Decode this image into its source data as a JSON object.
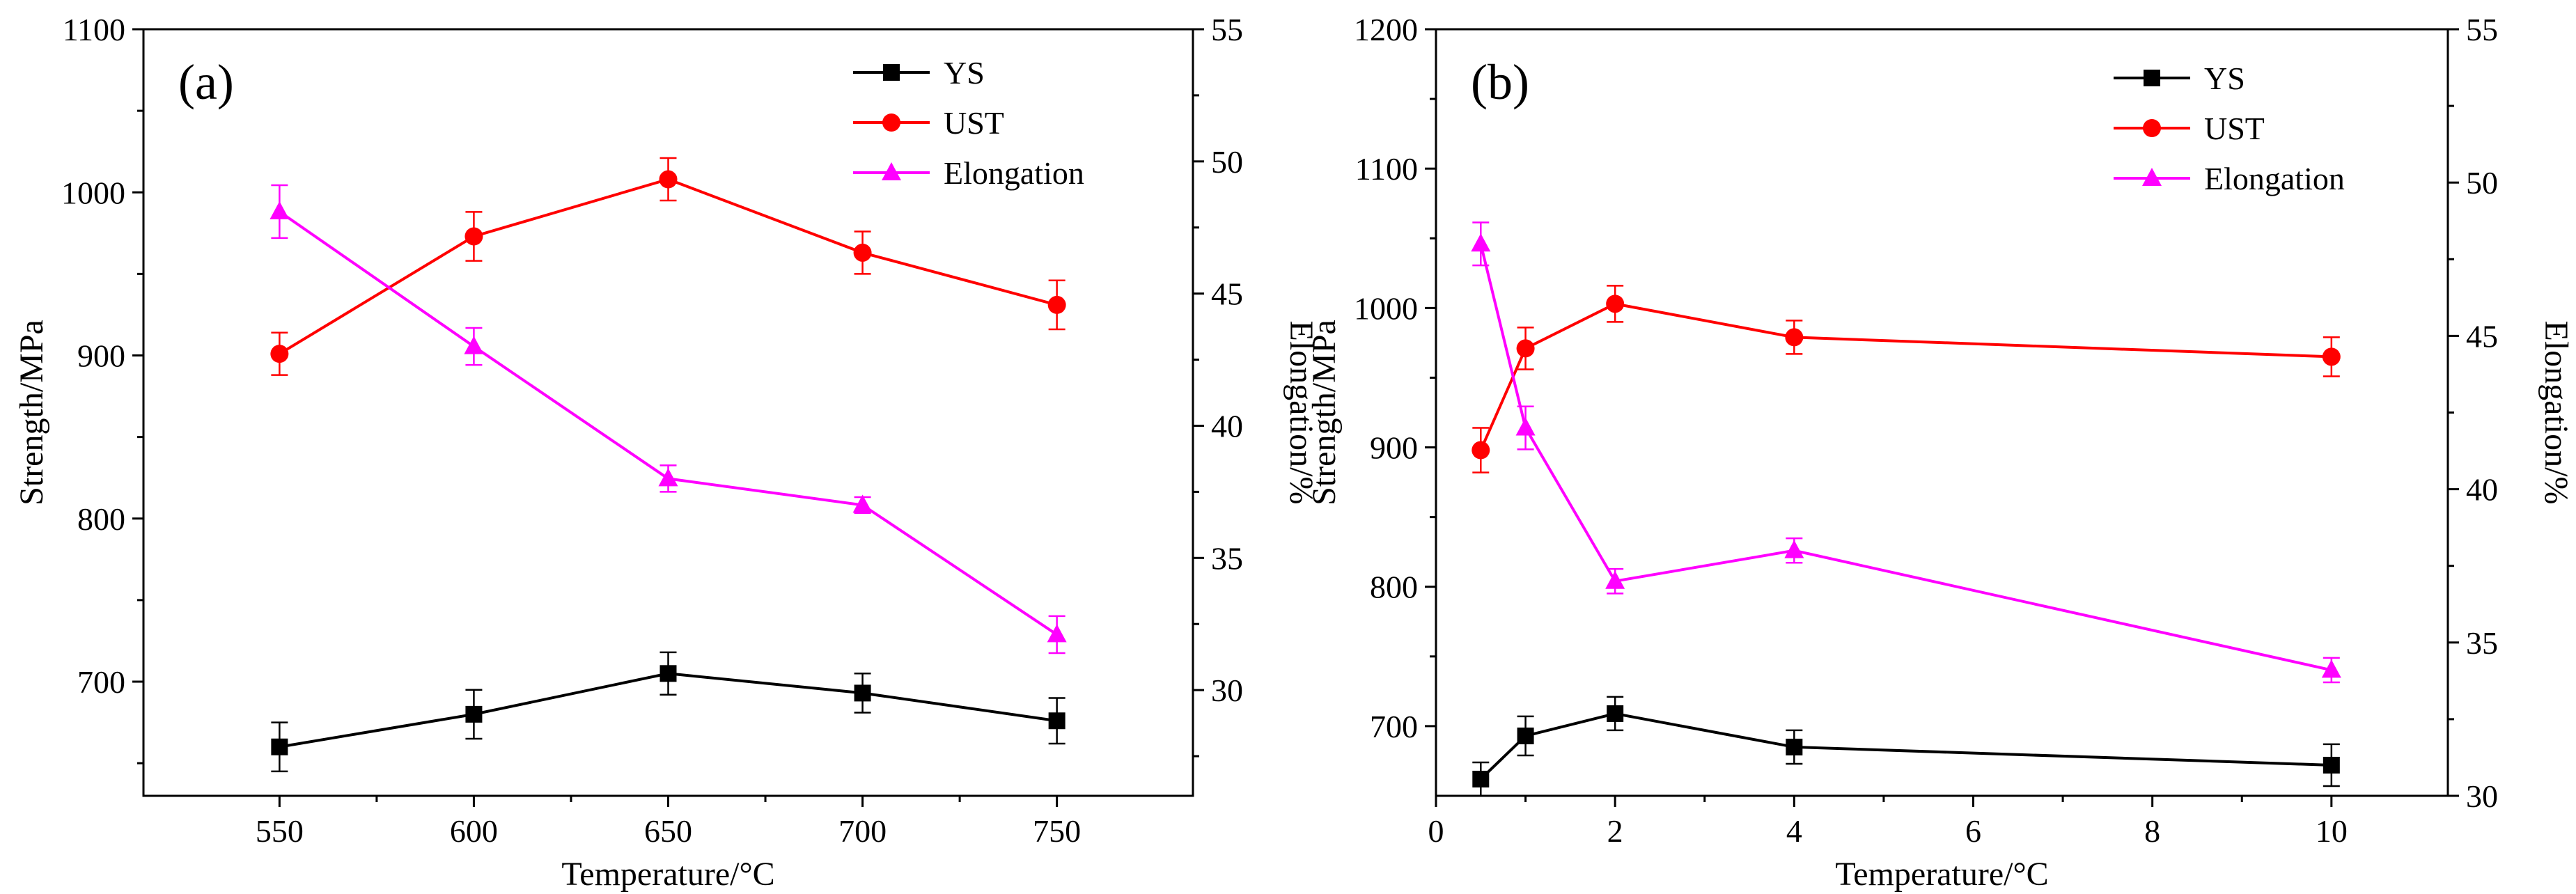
{
  "chart_data": [
    {
      "type": "line",
      "panel_label": "(a)",
      "xlabel": "Temperature/°C",
      "ylabel": "Strength/MPa",
      "y2label": "Elongation/%",
      "xlim": [
        515,
        785
      ],
      "ylim": [
        630,
        1100
      ],
      "y2lim": [
        26,
        55
      ],
      "xticks": [
        550,
        600,
        650,
        700,
        750
      ],
      "yticks": [
        700,
        800,
        900,
        1000,
        1100
      ],
      "y2ticks": [
        30,
        35,
        40,
        45,
        50,
        55
      ],
      "legend_position": "top-right",
      "series": [
        {
          "name": "YS",
          "axis": "left",
          "color": "#000000",
          "marker": "square",
          "x": [
            550,
            600,
            650,
            700,
            750
          ],
          "values": [
            660,
            680,
            705,
            693,
            676
          ],
          "errors": [
            15,
            15,
            13,
            12,
            14
          ]
        },
        {
          "name": "UST",
          "axis": "left",
          "color": "#ff0000",
          "marker": "circle",
          "x": [
            550,
            600,
            650,
            700,
            750
          ],
          "values": [
            901,
            973,
            1008,
            963,
            931
          ],
          "errors": [
            13,
            15,
            13,
            13,
            15
          ]
        },
        {
          "name": "Elongation",
          "axis": "right",
          "color": "#ff00ff",
          "marker": "triangle",
          "x": [
            550,
            600,
            650,
            700,
            750
          ],
          "values": [
            48.1,
            43.0,
            38.0,
            37.0,
            32.1
          ],
          "errors": [
            1.0,
            0.7,
            0.5,
            0.3,
            0.7
          ]
        }
      ]
    },
    {
      "type": "line",
      "panel_label": "(b)",
      "xlabel": "Temperature/°C",
      "ylabel": "Strength/MPa",
      "y2label": "Elongation/%",
      "xlim": [
        0,
        11.3
      ],
      "ylim": [
        650,
        1200
      ],
      "y2lim": [
        30,
        55
      ],
      "xticks": [
        0,
        2,
        4,
        6,
        8,
        10
      ],
      "yticks": [
        700,
        800,
        900,
        1000,
        1100,
        1200
      ],
      "y2ticks": [
        30,
        35,
        40,
        45,
        50,
        55
      ],
      "legend_position": "top-right",
      "series": [
        {
          "name": "YS",
          "axis": "left",
          "color": "#000000",
          "marker": "square",
          "x": [
            0.5,
            1,
            2,
            4,
            10
          ],
          "values": [
            662,
            693,
            709,
            685,
            672
          ],
          "errors": [
            12,
            14,
            12,
            12,
            15
          ]
        },
        {
          "name": "UST",
          "axis": "left",
          "color": "#ff0000",
          "marker": "circle",
          "x": [
            0.5,
            1,
            2,
            4,
            10
          ],
          "values": [
            898,
            971,
            1003,
            979,
            965
          ],
          "errors": [
            16,
            15,
            13,
            12,
            14
          ]
        },
        {
          "name": "Elongation",
          "axis": "right",
          "color": "#ff00ff",
          "marker": "triangle",
          "x": [
            0.5,
            1,
            2,
            4,
            10
          ],
          "values": [
            48.0,
            42.0,
            37.0,
            38.0,
            34.1
          ],
          "errors": [
            0.7,
            0.7,
            0.4,
            0.4,
            0.4
          ]
        }
      ]
    }
  ]
}
